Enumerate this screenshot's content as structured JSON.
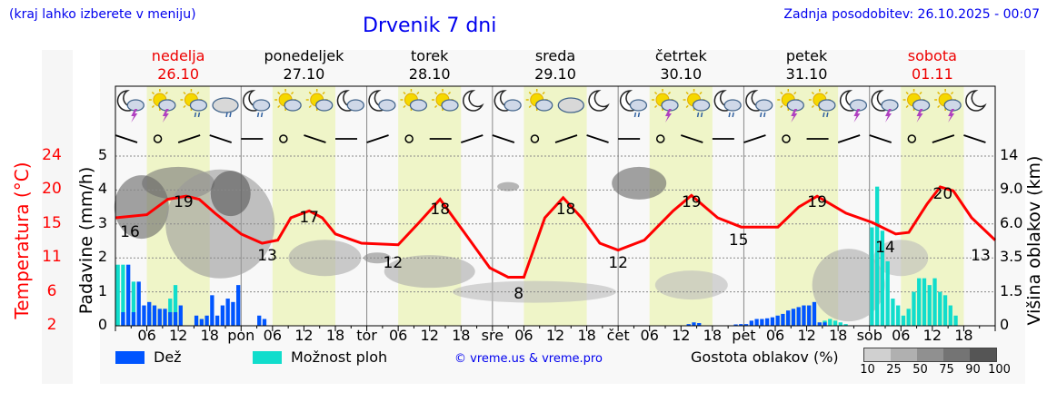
{
  "header": {
    "hint": "(kraj lahko izberete v meniju)",
    "title": "Drvenik 7 dni",
    "updated": "Zadnja posodobitev: 26.10.2025 - 00:07"
  },
  "days": [
    {
      "name": "nedelja",
      "date": "26.10",
      "weekend": true,
      "short": ""
    },
    {
      "name": "ponedeljek",
      "date": "27.10",
      "weekend": false,
      "short": "pon"
    },
    {
      "name": "torek",
      "date": "28.10",
      "weekend": false,
      "short": "tor"
    },
    {
      "name": "sreda",
      "date": "29.10",
      "weekend": false,
      "short": "sre"
    },
    {
      "name": "četrtek",
      "date": "30.10",
      "weekend": false,
      "short": "čet"
    },
    {
      "name": "petek",
      "date": "31.10",
      "weekend": false,
      "short": "pet"
    },
    {
      "name": "sobota",
      "date": "01.11",
      "weekend": true,
      "short": "sob"
    }
  ],
  "colors": {
    "temp": "#ff0000",
    "rain": "#0055ff",
    "shower": "#11ddcc",
    "day_band": "#eff5c8",
    "weekend": "#ee0000",
    "link": "#0000ee"
  },
  "legend": {
    "rain": "Dež",
    "shower": "Možnost ploh",
    "copyright": "© vreme.us & vreme.pro",
    "cloud_density": "Gostota oblakov (%)",
    "cloud_ticks": [
      "10",
      "25",
      "50",
      "75",
      "90",
      "100"
    ]
  },
  "icons": [
    "moon-storm",
    "sun-storm",
    "sun-cloud-rain",
    "cloud-rain",
    "moon-rain",
    "sun-cloud",
    "sun-cloud",
    "moon-cloud",
    "moon-cloud",
    "sun-cloud",
    "sun-cloud-light",
    "moon",
    "moon-cloud",
    "sun-cloud",
    "cloud",
    "moon",
    "moon-rain",
    "sun-storm",
    "sun-rain",
    "moon-rain",
    "moon-rain",
    "sun-storm",
    "sun-rain",
    "moon-storm",
    "moon-storm",
    "sun-storm",
    "sun-storm",
    "moon"
  ],
  "chart_data": {
    "type": "line",
    "title": "Drvenik 7 dni",
    "xlabel": "",
    "hour_ticks": [
      "06",
      "12",
      "18"
    ],
    "y_left_temp": {
      "label": "Temperatura (°C)",
      "ticks": [
        "24",
        "20",
        "15",
        "11",
        "6",
        "2"
      ],
      "range": [
        2,
        24
      ]
    },
    "y_left_precip": {
      "label": "Padavine (mm/h)",
      "ticks": [
        "0",
        "1",
        "2",
        "3",
        "4",
        "5"
      ],
      "range": [
        0,
        5
      ]
    },
    "y_right_cloud": {
      "label": "Višina oblakov (km)",
      "ticks": [
        "0",
        "1.5",
        "3.5",
        "6.0",
        "9.0",
        "14"
      ]
    },
    "temperature": [
      [
        0,
        16
      ],
      [
        6,
        16.4
      ],
      [
        10,
        18.4
      ],
      [
        13.5,
        18.8
      ],
      [
        16,
        18.4
      ],
      [
        19,
        16.6
      ],
      [
        24,
        13.9
      ],
      [
        28,
        12.7
      ],
      [
        31,
        13.1
      ],
      [
        33.5,
        16
      ],
      [
        37,
        16.9
      ],
      [
        39.5,
        16
      ],
      [
        42,
        13.9
      ],
      [
        47,
        12.7
      ],
      [
        54,
        12.5
      ],
      [
        58,
        15.4
      ],
      [
        62,
        18.4
      ],
      [
        66.5,
        14.2
      ],
      [
        71.5,
        9.5
      ],
      [
        75,
        8.3
      ],
      [
        78,
        8.3
      ],
      [
        82,
        16
      ],
      [
        85.5,
        18.6
      ],
      [
        89,
        16
      ],
      [
        92.5,
        12.7
      ],
      [
        96,
        11.8
      ],
      [
        101,
        13.1
      ],
      [
        106.5,
        16.9
      ],
      [
        110,
        18.9
      ],
      [
        115,
        16
      ],
      [
        119.5,
        14.8
      ],
      [
        126.5,
        14.8
      ],
      [
        130.5,
        17.4
      ],
      [
        134,
        18.8
      ],
      [
        139.5,
        16.6
      ],
      [
        144.5,
        15.4
      ],
      [
        149,
        13.9
      ],
      [
        151.5,
        14.1
      ],
      [
        155,
        17.8
      ],
      [
        157.5,
        20
      ],
      [
        160,
        19.5
      ],
      [
        163.5,
        16
      ],
      [
        168,
        13.1
      ]
    ],
    "temp_labels": [
      [
        0,
        "16"
      ],
      [
        13,
        "19"
      ],
      [
        29,
        "13"
      ],
      [
        37,
        "17"
      ],
      [
        53,
        "12"
      ],
      [
        62,
        "18"
      ],
      [
        77,
        "8"
      ],
      [
        86,
        "18"
      ],
      [
        96,
        "12"
      ],
      [
        110,
        "19"
      ],
      [
        119,
        "15"
      ],
      [
        134,
        "19"
      ],
      [
        147,
        "14"
      ],
      [
        158,
        "20"
      ],
      [
        168,
        "13"
      ]
    ],
    "precip": [
      [
        0,
        0,
        1.8
      ],
      [
        1,
        0.4,
        1.8
      ],
      [
        2,
        1.8,
        0
      ],
      [
        3,
        0.4,
        1.3
      ],
      [
        4,
        1.3,
        0
      ],
      [
        5,
        0.6,
        0
      ],
      [
        6,
        0.7,
        0.4
      ],
      [
        7,
        0.6,
        0
      ],
      [
        8,
        0.5,
        0
      ],
      [
        9,
        0.5,
        0
      ],
      [
        10,
        0.4,
        0.8
      ],
      [
        11,
        0.4,
        1.2
      ],
      [
        12,
        0.6,
        0
      ],
      [
        15,
        0.3,
        0
      ],
      [
        16,
        0.2,
        0
      ],
      [
        17,
        0.3,
        0
      ],
      [
        18,
        0.9,
        0
      ],
      [
        19,
        0.3,
        0
      ],
      [
        20,
        0.6,
        0
      ],
      [
        21,
        0.8,
        0
      ],
      [
        22,
        0.7,
        0
      ],
      [
        23,
        1.2,
        0
      ],
      [
        27,
        0.3,
        0
      ],
      [
        28,
        0.2,
        0
      ],
      [
        109,
        0.05,
        0
      ],
      [
        110,
        0.1,
        0
      ],
      [
        111,
        0.08,
        0
      ],
      [
        118,
        0.04,
        0
      ],
      [
        119,
        0.05,
        0
      ],
      [
        120,
        0.05,
        0
      ],
      [
        121,
        0.15,
        0
      ],
      [
        122,
        0.2,
        0
      ],
      [
        123,
        0.2,
        0
      ],
      [
        124,
        0.22,
        0
      ],
      [
        125,
        0.25,
        0
      ],
      [
        126,
        0.3,
        0
      ],
      [
        127,
        0.35,
        0
      ],
      [
        128,
        0.45,
        0
      ],
      [
        129,
        0.5,
        0
      ],
      [
        130,
        0.55,
        0
      ],
      [
        131,
        0.6,
        0
      ],
      [
        132,
        0.6,
        0
      ],
      [
        133,
        0.7,
        0
      ],
      [
        134,
        0.1,
        0
      ],
      [
        135,
        0.1,
        0.15
      ],
      [
        136,
        0,
        0.2
      ],
      [
        137,
        0,
        0.15
      ],
      [
        138,
        0,
        0.1
      ],
      [
        139,
        0,
        0.05
      ],
      [
        144,
        0,
        2.9
      ],
      [
        145,
        0,
        4.1
      ],
      [
        146,
        0,
        2.8
      ],
      [
        147,
        0,
        1.9
      ],
      [
        148,
        0,
        0.8
      ],
      [
        149,
        0,
        0.6
      ],
      [
        150,
        0,
        0.3
      ],
      [
        151,
        0,
        0.5
      ],
      [
        152,
        0,
        1.0
      ],
      [
        153,
        0,
        1.4
      ],
      [
        154,
        0,
        1.4
      ],
      [
        155,
        0,
        1.2
      ],
      [
        156,
        0,
        1.4
      ],
      [
        157,
        0,
        1.0
      ],
      [
        158,
        0,
        0.9
      ],
      [
        159,
        0,
        0.6
      ],
      [
        160,
        0,
        0.3
      ]
    ]
  }
}
